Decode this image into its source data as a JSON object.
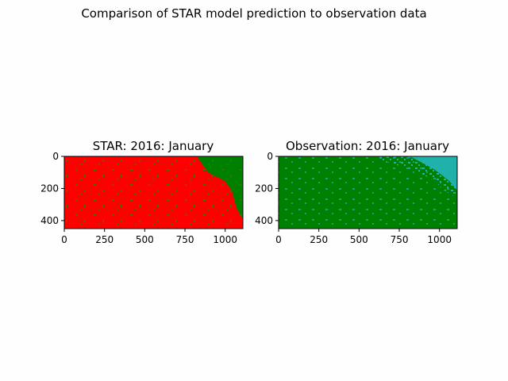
{
  "figure": {
    "suptitle": "Comparison of STAR model prediction to observation data"
  },
  "colors": {
    "red": "#ff0000",
    "green": "#008000",
    "teal": "#20b2aa"
  },
  "chart_data": [
    {
      "type": "heatmap",
      "title": "STAR: 2016: January",
      "xlim": [
        0,
        1110
      ],
      "ylim": [
        450,
        0
      ],
      "x_ticks": [
        "0",
        "250",
        "500",
        "750",
        "1000"
      ],
      "y_ticks": [
        "0",
        "200",
        "400"
      ],
      "dominant_color": "red",
      "secondary_color": "green",
      "secondary_region": "top-right corner and right edge"
    },
    {
      "type": "heatmap",
      "title": "Observation: 2016: January",
      "xlim": [
        0,
        1110
      ],
      "ylim": [
        450,
        0
      ],
      "x_ticks": [
        "0",
        "250",
        "500",
        "750",
        "1000"
      ],
      "y_ticks": [
        "0",
        "200",
        "400"
      ],
      "dominant_color": "green",
      "secondary_color": "teal",
      "secondary_region": "top-right corner and right edge"
    }
  ]
}
